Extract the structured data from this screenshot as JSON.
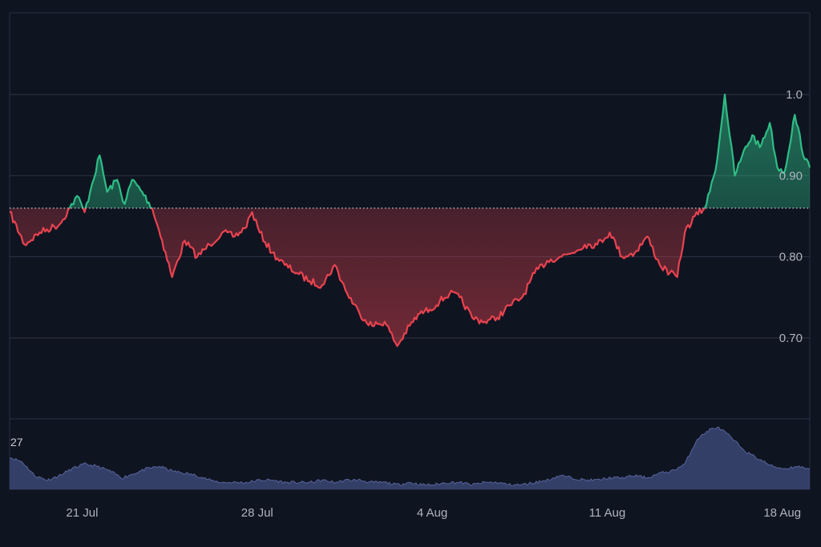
{
  "chart_data": [
    {
      "type": "area",
      "title": "",
      "xlabel": "",
      "ylabel": "",
      "baseline": 0.86,
      "ylim": [
        0.6,
        1.1
      ],
      "y_ticks": [
        "0.70",
        "0.80",
        "0.90",
        "1.0"
      ],
      "y_tick_values": [
        0.7,
        0.8,
        0.9,
        1.0
      ],
      "x_ticks": [
        "21 Jul",
        "28 Jul",
        "4 Aug",
        "11 Aug",
        "18 Aug"
      ],
      "x_tick_days": [
        2.9,
        9.9,
        16.9,
        23.9,
        30.9
      ],
      "grid": true,
      "colors": {
        "above": "#2ebd85",
        "below": "#e9434f",
        "baseline": "#c9ccd4"
      },
      "series": [
        {
          "x": [
            0,
            0.6,
            1.2,
            2.0,
            2.4,
            2.7,
            3.0,
            3.3,
            3.6,
            3.9,
            4.3,
            4.6,
            4.9,
            5.3,
            5.7,
            6.1,
            6.5,
            7.0,
            7.5,
            8.0,
            8.5,
            9.0,
            9.4,
            9.7,
            10.0,
            10.5,
            11.0,
            11.5,
            12.0,
            12.5,
            13.0,
            13.5,
            14.0,
            14.5,
            15.0,
            15.5,
            16.0,
            16.4,
            16.8,
            17.2,
            17.6,
            18.0,
            18.5,
            19.0,
            19.5,
            20.0,
            20.5,
            21.0,
            21.5,
            22.0,
            22.5,
            23.0,
            23.5,
            24.0,
            24.5,
            25.0,
            25.5,
            26.0,
            26.4,
            26.7,
            27.0,
            27.4,
            27.8,
            28.0,
            28.3,
            28.6,
            29.0,
            29.3,
            29.7,
            30.0,
            30.4,
            30.7,
            31.0,
            31.4,
            31.8,
            32.0
          ],
          "y": [
            0.855,
            0.815,
            0.83,
            0.84,
            0.86,
            0.875,
            0.855,
            0.89,
            0.925,
            0.88,
            0.895,
            0.865,
            0.895,
            0.88,
            0.86,
            0.82,
            0.775,
            0.82,
            0.8,
            0.815,
            0.83,
            0.825,
            0.835,
            0.855,
            0.83,
            0.805,
            0.79,
            0.78,
            0.77,
            0.765,
            0.79,
            0.755,
            0.73,
            0.715,
            0.72,
            0.69,
            0.715,
            0.73,
            0.735,
            0.745,
            0.755,
            0.75,
            0.725,
            0.72,
            0.725,
            0.74,
            0.75,
            0.78,
            0.795,
            0.8,
            0.805,
            0.815,
            0.815,
            0.83,
            0.8,
            0.805,
            0.825,
            0.79,
            0.78,
            0.775,
            0.83,
            0.85,
            0.86,
            0.88,
            0.92,
            1.0,
            0.9,
            0.925,
            0.95,
            0.935,
            0.965,
            0.91,
            0.905,
            0.975,
            0.92,
            0.91
          ]
        }
      ]
    },
    {
      "type": "area",
      "title": "",
      "ylim": [
        0,
        30
      ],
      "y_tick_labels": [
        "27"
      ],
      "y_tick_values": [
        27
      ],
      "color": "#3b4774",
      "series": [
        {
          "x": [
            0,
            0.5,
            1.0,
            1.5,
            2.0,
            2.5,
            3.0,
            3.5,
            4.0,
            4.5,
            5.0,
            5.5,
            6.0,
            6.5,
            7.0,
            7.5,
            8.0,
            8.5,
            9.0,
            9.5,
            10.0,
            10.5,
            11.0,
            11.5,
            12.0,
            12.5,
            13.0,
            13.5,
            14.0,
            14.5,
            15.0,
            15.5,
            16.0,
            16.5,
            17.0,
            17.5,
            18.0,
            18.5,
            19.0,
            19.5,
            20.0,
            20.5,
            21.0,
            21.5,
            22.0,
            22.5,
            23.0,
            23.5,
            24.0,
            24.5,
            25.0,
            25.5,
            26.0,
            26.5,
            27.0,
            27.5,
            28.0,
            28.3,
            28.6,
            29.0,
            29.5,
            30.0,
            30.5,
            31.0,
            31.5,
            32.0
          ],
          "y": [
            14,
            12,
            6,
            4,
            6,
            9,
            11,
            10,
            8,
            5,
            7,
            9,
            10,
            8,
            7,
            6,
            4,
            3,
            3,
            3,
            4,
            4,
            3,
            3,
            3,
            4,
            3,
            4,
            4,
            3,
            3,
            2,
            3,
            2,
            2,
            3,
            3,
            2,
            3,
            3,
            2,
            2,
            3,
            4,
            6,
            5,
            4,
            4,
            5,
            5,
            6,
            5,
            7,
            8,
            11,
            22,
            26,
            27,
            25,
            21,
            16,
            13,
            10,
            9,
            10,
            9
          ]
        }
      ]
    }
  ]
}
